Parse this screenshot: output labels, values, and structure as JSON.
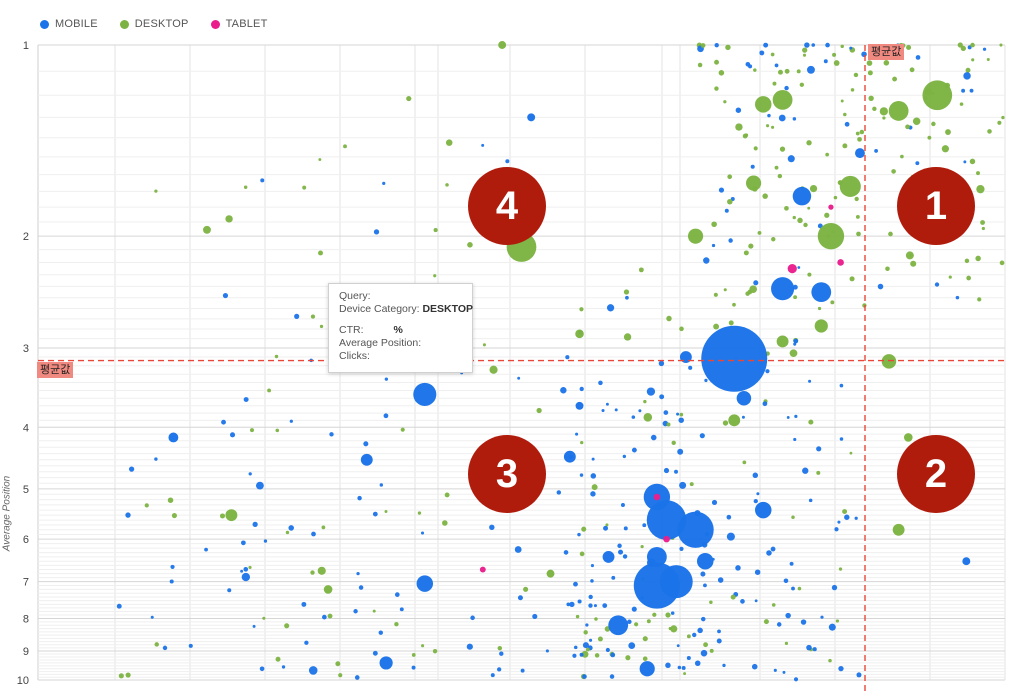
{
  "legend": [
    {
      "label": "MOBILE",
      "color": "#1a73e8"
    },
    {
      "label": "DESKTOP",
      "color": "#7cb342"
    },
    {
      "label": "TABLET",
      "color": "#e91e8c"
    }
  ],
  "avg_label": "평균값",
  "tooltip": {
    "query": "Query:",
    "device_prefix": "Device Category:",
    "device_value": "DESKTOP",
    "ctr": "CTR:",
    "ctr_unit": "%",
    "avg_position": "Average Position:",
    "clicks": "Clicks:"
  },
  "quadrants": [
    "1",
    "2",
    "3",
    "4"
  ],
  "chart_data": {
    "type": "scatter",
    "ylabel": "Average Position",
    "xlabel": "",
    "y_scale": "log",
    "y_reversed": true,
    "ylim": [
      1,
      10
    ],
    "y_ticks": [
      "1",
      "2",
      "3",
      "4",
      "5",
      "6",
      "7",
      "8",
      "9",
      "10"
    ],
    "average_position": 3.14,
    "series": [
      {
        "name": "MOBILE",
        "color": "#1a73e8",
        "points": [
          {
            "x": 0.72,
            "y": 3.12,
            "size": 10
          },
          {
            "x": 0.64,
            "y": 7.1,
            "size": 7
          },
          {
            "x": 0.66,
            "y": 7.0,
            "size": 5
          },
          {
            "x": 0.65,
            "y": 5.6,
            "size": 6
          },
          {
            "x": 0.68,
            "y": 5.8,
            "size": 5.5
          },
          {
            "x": 0.64,
            "y": 5.15,
            "size": 4
          },
          {
            "x": 0.64,
            "y": 6.4,
            "size": 3
          },
          {
            "x": 0.6,
            "y": 8.2,
            "size": 3
          },
          {
            "x": 0.63,
            "y": 9.6,
            "size": 2.3
          },
          {
            "x": 0.69,
            "y": 6.5,
            "size": 2.5
          },
          {
            "x": 0.75,
            "y": 5.4,
            "size": 2.5
          },
          {
            "x": 0.4,
            "y": 3.55,
            "size": 3.5
          },
          {
            "x": 0.4,
            "y": 7.05,
            "size": 2.5
          },
          {
            "x": 0.77,
            "y": 2.42,
            "size": 3.5
          },
          {
            "x": 0.81,
            "y": 2.45,
            "size": 3
          },
          {
            "x": 0.79,
            "y": 1.73,
            "size": 2.8
          },
          {
            "x": 0.73,
            "y": 3.6,
            "size": 2.2
          },
          {
            "x": 0.55,
            "y": 4.45,
            "size": 1.8
          },
          {
            "x": 0.34,
            "y": 4.5,
            "size": 1.8
          },
          {
            "x": 0.36,
            "y": 9.4,
            "size": 2
          },
          {
            "x": 0.14,
            "y": 4.15,
            "size": 1.5
          },
          {
            "x": 0.59,
            "y": 6.4,
            "size": 1.8
          },
          {
            "x": 0.67,
            "y": 3.1,
            "size": 1.8
          },
          {
            "x": 0.56,
            "y": 3.7,
            "size": 1.2
          },
          {
            "x": 0.51,
            "y": 1.3,
            "size": 1.2
          },
          {
            "x": 0.96,
            "y": 6.5,
            "size": 1.2
          },
          {
            "x": 0.85,
            "y": 1.48,
            "size": 1.5
          }
        ]
      },
      {
        "name": "DESKTOP",
        "color": "#7cb342",
        "points": [
          {
            "x": 0.5,
            "y": 2.08,
            "size": 4.5
          },
          {
            "x": 0.82,
            "y": 2.0,
            "size": 4
          },
          {
            "x": 0.84,
            "y": 1.67,
            "size": 3.2
          },
          {
            "x": 0.93,
            "y": 1.2,
            "size": 4.5
          },
          {
            "x": 0.89,
            "y": 1.27,
            "size": 3
          },
          {
            "x": 0.77,
            "y": 1.22,
            "size": 3
          },
          {
            "x": 0.75,
            "y": 1.24,
            "size": 2.5
          },
          {
            "x": 0.74,
            "y": 1.65,
            "size": 2.3
          },
          {
            "x": 0.68,
            "y": 2.0,
            "size": 2.3
          },
          {
            "x": 0.88,
            "y": 3.15,
            "size": 2.2
          },
          {
            "x": 0.2,
            "y": 5.5,
            "size": 1.8
          },
          {
            "x": 0.89,
            "y": 5.8,
            "size": 1.8
          },
          {
            "x": 0.81,
            "y": 2.77,
            "size": 2
          },
          {
            "x": 0.77,
            "y": 2.93,
            "size": 1.8
          },
          {
            "x": 0.72,
            "y": 3.9,
            "size": 1.8
          },
          {
            "x": 0.48,
            "y": 1.0,
            "size": 1.2
          },
          {
            "x": 0.53,
            "y": 6.8,
            "size": 1.2
          },
          {
            "x": 0.3,
            "y": 7.2,
            "size": 1.3
          },
          {
            "x": 0.9,
            "y": 4.15,
            "size": 1.3
          },
          {
            "x": 0.56,
            "y": 2.85,
            "size": 1.3
          }
        ]
      },
      {
        "name": "TABLET",
        "color": "#e91e8c",
        "points": [
          {
            "x": 0.78,
            "y": 2.25,
            "size": 1.4
          },
          {
            "x": 0.83,
            "y": 2.2,
            "size": 1
          },
          {
            "x": 0.64,
            "y": 5.15,
            "size": 1
          },
          {
            "x": 0.65,
            "y": 6.0,
            "size": 1
          },
          {
            "x": 0.46,
            "y": 6.7,
            "size": 0.9
          },
          {
            "x": 0.82,
            "y": 1.8,
            "size": 0.8
          }
        ]
      }
    ]
  }
}
